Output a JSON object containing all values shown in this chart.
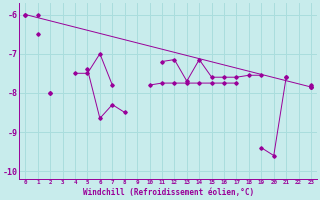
{
  "background_color": "#c8ecec",
  "grid_color": "#aadddd",
  "line_color": "#990099",
  "xlim": [
    -0.5,
    23.5
  ],
  "ylim": [
    -10.2,
    -5.7
  ],
  "yticks": [
    -10,
    -9,
    -8,
    -7,
    -6
  ],
  "xlabel": "Windchill (Refroidissement éolien,°C)",
  "series": [
    [
      null,
      -6.0,
      null,
      null,
      null,
      null,
      null,
      null,
      null,
      null,
      null,
      null,
      null,
      null,
      null,
      null,
      null,
      null,
      null,
      null,
      null,
      null,
      null,
      null
    ],
    [
      null,
      -6.5,
      null,
      null,
      -7.5,
      -7.5,
      -7.0,
      -7.8,
      null,
      null,
      null,
      -7.2,
      -7.15,
      -7.7,
      -7.15,
      -7.6,
      -7.6,
      -7.6,
      -7.55,
      -7.55,
      null,
      -7.6,
      null,
      -7.8
    ],
    [
      null,
      null,
      -8.0,
      null,
      null,
      -7.4,
      -8.65,
      -8.3,
      -8.5,
      null,
      -7.8,
      -7.75,
      -7.75,
      -7.75,
      -7.75,
      -7.75,
      -7.75,
      -7.75,
      null,
      -9.4,
      -9.6,
      -7.6,
      null,
      -7.85
    ],
    [
      -6.0,
      null,
      -8.0,
      null,
      null,
      null,
      null,
      null,
      null,
      null,
      null,
      null,
      null,
      null,
      null,
      null,
      null,
      null,
      null,
      null,
      null,
      null,
      null,
      -7.85
    ]
  ],
  "trend_x": [
    0,
    23
  ],
  "trend_y": [
    -6.0,
    -7.85
  ]
}
